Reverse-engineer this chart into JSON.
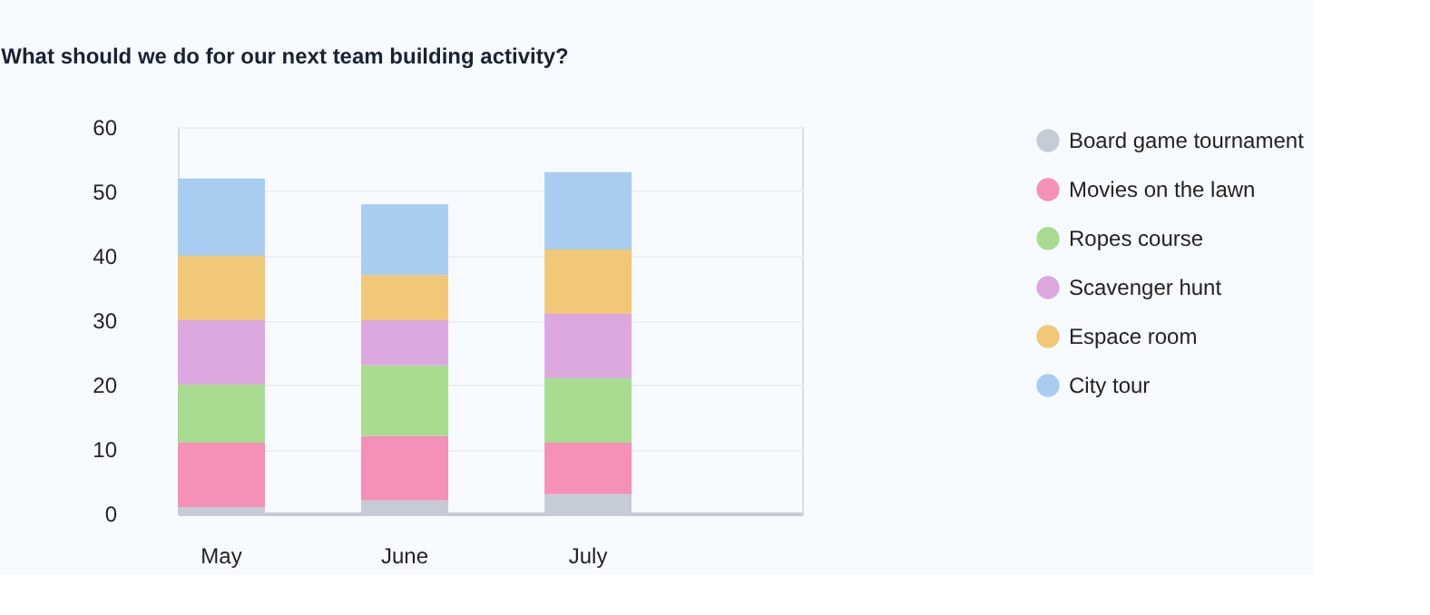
{
  "chart_data": {
    "type": "bar",
    "title": "What should we do for our next team building activity?",
    "stacked": true,
    "categories": [
      "May",
      "June",
      "July"
    ],
    "series": [
      {
        "name": "Board game tournament",
        "color": "#c5ccd6",
        "values": [
          1,
          2,
          3
        ]
      },
      {
        "name": "Movies on the lawn",
        "color": "#f590b8",
        "values": [
          10,
          10,
          8
        ]
      },
      {
        "name": "Ropes course",
        "color": "#a8dc90",
        "values": [
          9,
          11,
          10
        ]
      },
      {
        "name": "Scavenger hunt",
        "color": "#dda8e0",
        "values": [
          10,
          7,
          10
        ]
      },
      {
        "name": "Espace room",
        "color": "#f0c878",
        "values": [
          10,
          7,
          10
        ]
      },
      {
        "name": "City tour",
        "color": "#a8cdf0",
        "values": [
          12,
          11,
          12
        ]
      }
    ],
    "ylim": [
      0,
      60
    ],
    "yticks": [
      0,
      10,
      20,
      30,
      40,
      50,
      60
    ],
    "grid": "y",
    "legend": "right"
  }
}
